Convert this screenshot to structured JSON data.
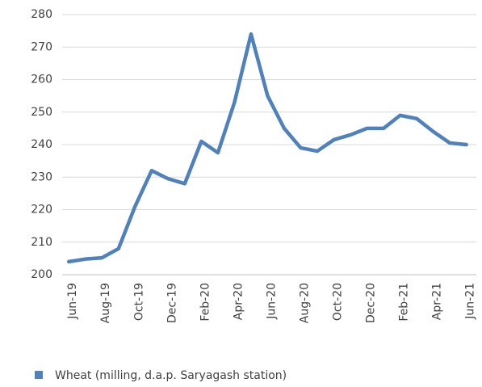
{
  "chart_data": {
    "type": "line",
    "categories": [
      "Jun-19",
      null,
      "Aug-19",
      null,
      "Oct-19",
      null,
      "Dec-19",
      null,
      "Feb-20",
      null,
      "Apr-20",
      null,
      "Jun-20",
      null,
      "Aug-20",
      null,
      "Oct-20",
      null,
      "Dec-20",
      null,
      "Feb-21",
      null,
      "Apr-21",
      null,
      "Jun-21"
    ],
    "series": [
      {
        "name": "Wheat (milling, d.a.p. Saryagash station)",
        "color": "#4f81bd",
        "values": [
          204,
          204.8,
          205.2,
          208,
          221,
          232,
          229.5,
          228,
          241,
          237.5,
          253,
          274,
          255,
          245,
          239,
          238,
          241.5,
          243,
          245,
          245,
          249,
          248,
          244,
          240.5,
          240
        ]
      }
    ],
    "ylim": [
      200,
      280
    ],
    "yticks": [
      200,
      210,
      220,
      230,
      240,
      250,
      260,
      270,
      280
    ],
    "grid": true,
    "legend": "bottom"
  }
}
